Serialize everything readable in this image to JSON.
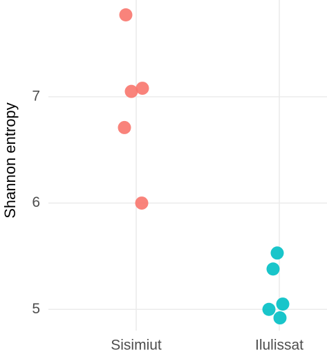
{
  "chart_data": {
    "type": "strip",
    "y_label": "Shannon entropy",
    "categories": [
      "Sisimiut",
      "Ilulissat"
    ],
    "colors": [
      "#f8766d",
      "#00bfc4"
    ],
    "values": [
      [
        7.77,
        7.08,
        7.05,
        6.71,
        6.0
      ],
      [
        5.53,
        5.38,
        5.05,
        5.0,
        4.92
      ]
    ],
    "ylim": [
      4.8,
      7.91
    ],
    "yticks": [
      5,
      6,
      7
    ],
    "grid": true
  }
}
